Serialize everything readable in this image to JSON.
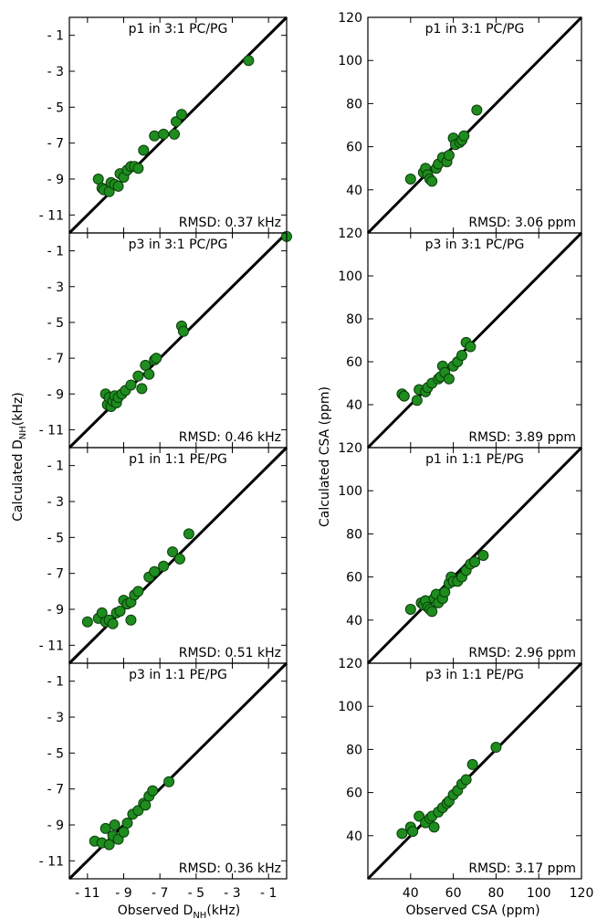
{
  "labels": {
    "left_ylabel": "Calculated D",
    "left_ylabel_sub": "NH",
    "left_ylabel_unit": "(kHz)",
    "left_xlabel": "Observed D",
    "left_xlabel_sub": "NH",
    "left_xlabel_unit": "(kHz)",
    "right_ylabel": "Calculated CSA (ppm)",
    "right_xlabel": "Observed CSA (ppm)"
  },
  "chart_data": [
    {
      "type": "scatter",
      "column": 0,
      "row": 0,
      "title": "p1 in 3:1 PC/PG",
      "annotation": "RMSD: 0.37 kHz",
      "xlim": [
        -12,
        0
      ],
      "ylim": [
        -12,
        0
      ],
      "xticks": [
        -11,
        -9,
        -7,
        -5,
        -3,
        -1
      ],
      "yticks": [
        -11,
        -9,
        -7,
        -5,
        -3,
        -1
      ],
      "xticklabels": [],
      "yticklabels": [
        "- 11",
        "- 9",
        "- 7",
        "- 5",
        "- 3",
        "- 1"
      ],
      "x": [
        -10.4,
        -10.2,
        -10.1,
        -9.8,
        -9.7,
        -9.5,
        -9.3,
        -9.2,
        -9.0,
        -8.8,
        -8.6,
        -8.4,
        -8.2,
        -7.9,
        -7.3,
        -6.8,
        -6.2,
        -6.1,
        -5.8,
        -2.1
      ],
      "y": [
        -9.0,
        -9.5,
        -9.6,
        -9.7,
        -9.2,
        -9.3,
        -9.4,
        -8.7,
        -8.9,
        -8.5,
        -8.3,
        -8.3,
        -8.4,
        -7.4,
        -6.6,
        -6.5,
        -6.5,
        -5.8,
        -5.4,
        -2.4
      ]
    },
    {
      "type": "scatter",
      "column": 0,
      "row": 1,
      "title": "p3 in 3:1 PC/PG",
      "annotation": "RMSD: 0.46 kHz",
      "xlim": [
        -12,
        0
      ],
      "ylim": [
        -12,
        0
      ],
      "xticks": [
        -11,
        -9,
        -7,
        -5,
        -3,
        -1
      ],
      "yticks": [
        -11,
        -9,
        -7,
        -5,
        -3,
        -1
      ],
      "xticklabels": [],
      "yticklabels": [
        "- 11",
        "- 9",
        "- 7",
        "- 5",
        "- 3",
        "- 1"
      ],
      "x": [
        -10.0,
        -9.9,
        -9.8,
        -9.7,
        -9.6,
        -9.5,
        -9.4,
        -9.3,
        -9.1,
        -8.9,
        -8.6,
        -8.2,
        -8.0,
        -7.8,
        -7.6,
        -7.3,
        -7.2,
        -5.8,
        -5.7,
        0.0
      ],
      "y": [
        -9.0,
        -9.6,
        -9.2,
        -9.7,
        -9.4,
        -9.1,
        -9.5,
        -9.2,
        -9.0,
        -8.8,
        -8.5,
        -8.0,
        -8.7,
        -7.4,
        -7.9,
        -7.1,
        -7.0,
        -5.2,
        -5.5,
        -0.2
      ]
    },
    {
      "type": "scatter",
      "column": 0,
      "row": 2,
      "title": "p1 in 1:1 PE/PG",
      "annotation": "RMSD: 0.51 kHz",
      "xlim": [
        -12,
        0
      ],
      "ylim": [
        -12,
        0
      ],
      "xticks": [
        -11,
        -9,
        -7,
        -5,
        -3,
        -1
      ],
      "yticks": [
        -11,
        -9,
        -7,
        -5,
        -3,
        -1
      ],
      "xticklabels": [],
      "yticklabels": [
        "- 11",
        "- 9",
        "- 7",
        "- 5",
        "- 3",
        "- 1"
      ],
      "x": [
        -11.0,
        -10.4,
        -10.2,
        -10.0,
        -9.8,
        -9.6,
        -9.4,
        -9.2,
        -9.0,
        -8.8,
        -8.6,
        -8.4,
        -8.2,
        -7.6,
        -7.3,
        -6.8,
        -6.3,
        -5.9,
        -5.4,
        -8.6
      ],
      "y": [
        -9.7,
        -9.5,
        -9.2,
        -9.7,
        -9.6,
        -9.8,
        -9.2,
        -9.1,
        -8.5,
        -8.7,
        -8.6,
        -8.2,
        -8.0,
        -7.2,
        -6.9,
        -6.6,
        -5.8,
        -6.2,
        -4.8,
        -9.6
      ]
    },
    {
      "type": "scatter",
      "column": 0,
      "row": 3,
      "title": "p3 in 1:1 PE/PG",
      "annotation": "RMSD: 0.36 kHz",
      "xlim": [
        -12,
        0
      ],
      "ylim": [
        -12,
        0
      ],
      "xticks": [
        -11,
        -9,
        -7,
        -5,
        -3,
        -1
      ],
      "yticks": [
        -11,
        -9,
        -7,
        -5,
        -3,
        -1
      ],
      "xticklabels": [
        "- 11",
        "- 9",
        "- 7",
        "- 5",
        "- 3",
        "- 1"
      ],
      "yticklabels": [
        "- 11",
        "- 9",
        "- 7",
        "- 5",
        "- 3",
        "- 1"
      ],
      "x": [
        -10.6,
        -10.2,
        -10.0,
        -9.8,
        -9.6,
        -9.5,
        -9.3,
        -9.0,
        -8.8,
        -8.5,
        -8.2,
        -7.9,
        -7.8,
        -7.6,
        -7.4,
        -6.5
      ],
      "y": [
        -9.9,
        -10.0,
        -9.2,
        -10.1,
        -9.6,
        -9.0,
        -9.8,
        -9.4,
        -8.9,
        -8.4,
        -8.2,
        -7.8,
        -7.9,
        -7.4,
        -7.1,
        -6.6
      ]
    },
    {
      "type": "scatter",
      "column": 1,
      "row": 0,
      "title": "p1 in 3:1 PC/PG",
      "annotation": "RMSD: 3.06 ppm",
      "xlim": [
        20,
        120
      ],
      "ylim": [
        20,
        120
      ],
      "xticks": [
        40,
        60,
        80,
        100,
        120
      ],
      "yticks": [
        40,
        60,
        80,
        100,
        120
      ],
      "xticklabels": [],
      "yticklabels": [
        "40",
        "60",
        "80",
        "100",
        "120"
      ],
      "x": [
        40,
        46,
        47,
        48,
        49,
        50,
        52,
        53,
        55,
        57,
        58,
        60,
        61,
        63,
        64,
        65,
        71
      ],
      "y": [
        45,
        48,
        50,
        47,
        45,
        44,
        50,
        52,
        55,
        53,
        56,
        64,
        61,
        62,
        63,
        65,
        77
      ]
    },
    {
      "type": "scatter",
      "column": 1,
      "row": 1,
      "title": "p3 in 3:1 PC/PG",
      "annotation": "RMSD: 3.89 ppm",
      "xlim": [
        20,
        120
      ],
      "ylim": [
        20,
        120
      ],
      "xticks": [
        40,
        60,
        80,
        100,
        120
      ],
      "yticks": [
        40,
        60,
        80,
        100,
        120
      ],
      "xticklabels": [],
      "yticklabels": [
        "40",
        "60",
        "80",
        "100",
        "120"
      ],
      "x": [
        36,
        37,
        43,
        44,
        47,
        48,
        50,
        53,
        54,
        55,
        56,
        58,
        60,
        62,
        64,
        66,
        68
      ],
      "y": [
        45,
        44,
        42,
        47,
        46,
        48,
        50,
        52,
        53,
        58,
        55,
        52,
        58,
        60,
        63,
        69,
        67
      ]
    },
    {
      "type": "scatter",
      "column": 1,
      "row": 2,
      "title": "p1 in 1:1 PE/PG",
      "annotation": "RMSD: 2.96 ppm",
      "xlim": [
        20,
        120
      ],
      "ylim": [
        20,
        120
      ],
      "xticks": [
        40,
        60,
        80,
        100,
        120
      ],
      "yticks": [
        40,
        60,
        80,
        100,
        120
      ],
      "xticklabels": [],
      "yticklabels": [
        "40",
        "60",
        "80",
        "100",
        "120"
      ],
      "x": [
        40,
        45,
        46,
        47,
        48,
        49,
        50,
        51,
        52,
        53,
        55,
        56,
        58,
        59,
        60,
        62,
        64,
        66,
        68,
        70,
        74
      ],
      "y": [
        45,
        48,
        47,
        49,
        46,
        45,
        44,
        50,
        52,
        48,
        50,
        53,
        57,
        60,
        58,
        58,
        60,
        63,
        66,
        67,
        70
      ]
    },
    {
      "type": "scatter",
      "column": 1,
      "row": 3,
      "title": "p3 in 1:1 PE/PG",
      "annotation": "RMSD: 3.17 ppm",
      "xlim": [
        20,
        120
      ],
      "ylim": [
        20,
        120
      ],
      "xticks": [
        40,
        60,
        80,
        100,
        120
      ],
      "yticks": [
        40,
        60,
        80,
        100,
        120
      ],
      "xticklabels": [
        "40",
        "60",
        "80",
        "100",
        "120"
      ],
      "yticklabels": [
        "40",
        "60",
        "80",
        "100",
        "120"
      ],
      "x": [
        36,
        40,
        41,
        44,
        47,
        49,
        50,
        51,
        53,
        55,
        57,
        58,
        60,
        62,
        64,
        66,
        69,
        80
      ],
      "y": [
        41,
        44,
        42,
        49,
        46,
        48,
        49,
        44,
        51,
        53,
        55,
        56,
        59,
        61,
        64,
        66,
        73,
        81
      ]
    }
  ]
}
